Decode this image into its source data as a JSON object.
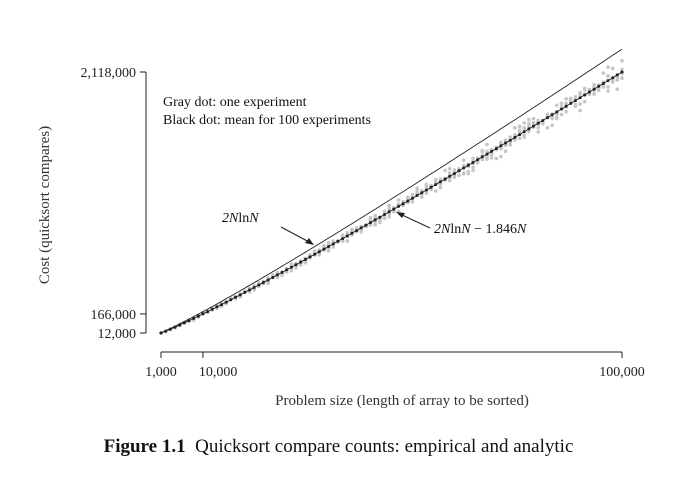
{
  "chart_data": {
    "type": "scatter",
    "title": "",
    "xlabel": "Problem size (length of array to be sorted)",
    "ylabel": "Cost (quicksort compares)",
    "xlim": [
      1000,
      100000
    ],
    "ylim": [
      12000,
      2118000
    ],
    "xticks": [
      {
        "value": 1000,
        "label": "1,000"
      },
      {
        "value": 10000,
        "label": "10,000"
      },
      {
        "value": 100000,
        "label": "100,000"
      }
    ],
    "yticks": [
      {
        "value": 12000,
        "label": "12,000"
      },
      {
        "value": 166000,
        "label": "166,000"
      },
      {
        "value": 2118000,
        "label": "2,118,000"
      }
    ],
    "legend": [
      "Gray dot: one experiment",
      "Black dot: mean for 100 experiments"
    ],
    "legend_position": "top-left",
    "series": [
      {
        "name": "one experiment",
        "color": "#c0c0c0",
        "marker": "dot"
      },
      {
        "name": "mean for 100 experiments",
        "color": "#222222",
        "marker": "dot"
      }
    ],
    "curves": [
      {
        "label_main": "2N",
        "label_ln": "ln",
        "label_n": "N",
        "formula": "2*N*ln(N)"
      },
      {
        "label_main": "2N",
        "label_ln": "ln",
        "label_n": "N",
        "label_tail": " − 1.846",
        "label_n2": "N",
        "formula": "2*N*ln(N) - 1.846*N"
      }
    ],
    "grid": false
  },
  "caption": {
    "number": "Figure 1.1",
    "text": "Quicksort compare counts: empirical and analytic"
  }
}
